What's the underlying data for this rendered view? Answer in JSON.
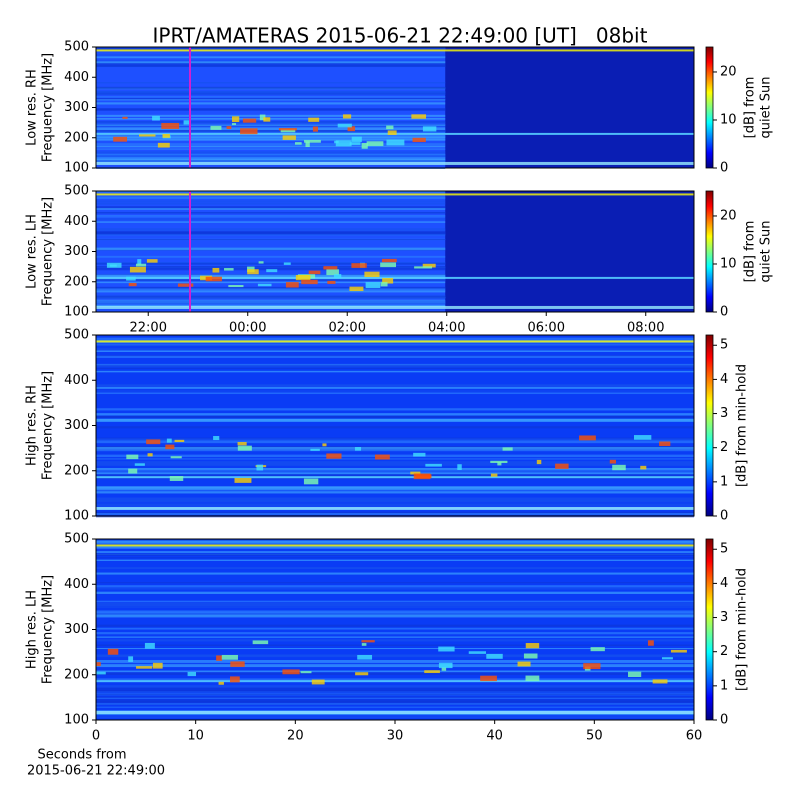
{
  "chart_data": [
    {
      "type": "heatmap",
      "title": "IPRT/AMATERAS 2015-06-21 22:49:00 [UT]   08bit",
      "ylabel": [
        "Low res. RH",
        "Frequency [MHz]"
      ],
      "ylim": [
        100,
        500
      ],
      "yticks": [
        100,
        200,
        300,
        400,
        500
      ],
      "colorbar_label": [
        "[dB] from",
        "quiet Sun"
      ],
      "clim": [
        0,
        25.2
      ],
      "cticks": [
        0,
        10,
        20
      ]
    },
    {
      "type": "heatmap",
      "ylabel": [
        "Low res. LH",
        "Frequency [MHz]"
      ],
      "ylim": [
        100,
        500
      ],
      "yticks": [
        100,
        200,
        300,
        400,
        500
      ],
      "xlim": [
        20.95,
        32.97
      ],
      "xticks": [
        {
          "value": 22,
          "label": "22:00"
        },
        {
          "value": 24,
          "label": "00:00"
        },
        {
          "value": 26,
          "label": "02:00"
        },
        {
          "value": 28,
          "label": "04:00"
        },
        {
          "value": 30,
          "label": "06:00"
        },
        {
          "value": 32,
          "label": "08:00"
        }
      ],
      "colorbar_label": [
        "[dB] from",
        "quiet Sun"
      ],
      "clim": [
        0,
        25.2
      ],
      "cticks": [
        0,
        10,
        20
      ]
    },
    {
      "type": "heatmap",
      "ylabel": [
        "High res. RH",
        "Frequency [MHz]"
      ],
      "ylim": [
        100,
        500
      ],
      "yticks": [
        100,
        200,
        300,
        400,
        500
      ],
      "colorbar_label": [
        "[dB] from min-hold"
      ],
      "clim": [
        0,
        5.3
      ],
      "cticks": [
        0,
        1,
        2,
        3,
        4,
        5
      ]
    },
    {
      "type": "heatmap",
      "ylabel": [
        "High res. LH",
        "Frequency [MHz]"
      ],
      "ylim": [
        100,
        500
      ],
      "yticks": [
        100,
        200,
        300,
        400,
        500
      ],
      "xlim": [
        0,
        60
      ],
      "xticks": [
        0,
        10,
        20,
        30,
        40,
        50,
        60
      ],
      "xlabel": [
        "Seconds from",
        "2015-06-21 22:49:00"
      ],
      "colorbar_label": [
        "[dB] from min-hold"
      ],
      "clim": [
        0,
        5.3
      ],
      "cticks": [
        0,
        1,
        2,
        3,
        4,
        5
      ]
    }
  ]
}
